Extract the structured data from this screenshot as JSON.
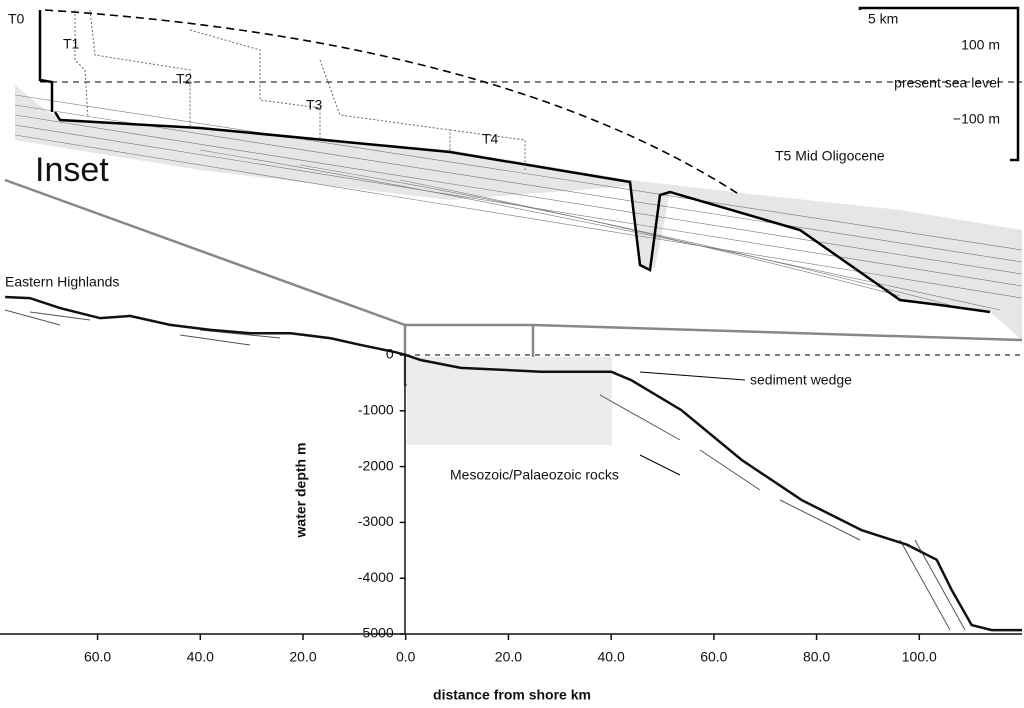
{
  "chart_data": {
    "type": "line",
    "x_label": "distance from shore km",
    "y_label": "water depth m",
    "x": [
      -78,
      -73.2,
      -67.3,
      -59.5,
      -53.7,
      -45.9,
      -38,
      -30.2,
      -22.4,
      -14.6,
      -8.8,
      -2,
      0,
      2.9,
      10.7,
      26.3,
      40,
      43.9,
      53.7,
      65.4,
      77.1,
      88.8,
      97.6,
      103.4,
      106.3,
      110.2,
      114.1,
      120
    ],
    "values": [
      1040,
      1020,
      840,
      660,
      700,
      540,
      450,
      390,
      390,
      300,
      180,
      50,
      0,
      -90,
      -230,
      -300,
      -300,
      -450,
      -990,
      -1880,
      -2600,
      -3140,
      -3400,
      -3670,
      -4210,
      -4840,
      -4930,
      -4930
    ],
    "color": "#111111",
    "xlim": [
      -79,
      120
    ],
    "ylim": [
      -5000,
      1100
    ],
    "xticks": [
      {
        "value": -60,
        "label": "60.0"
      },
      {
        "value": -40,
        "label": "40.0"
      },
      {
        "value": -20,
        "label": "20.0"
      },
      {
        "value": 0,
        "label": "0.0"
      },
      {
        "value": 20,
        "label": "20.0"
      },
      {
        "value": 40,
        "label": "40.0"
      },
      {
        "value": 60,
        "label": "60.0"
      },
      {
        "value": 80,
        "label": "80.0"
      },
      {
        "value": 100,
        "label": "100.0"
      }
    ],
    "yticks": [
      0,
      -1000,
      -2000,
      -3000,
      -4000,
      -5000
    ],
    "annotations": [
      "Eastern Highlands",
      "sediment wedge",
      "Mesozoic/Palaeozoic rocks"
    ],
    "inset": {
      "title": "Inset",
      "horizons": [
        "T0",
        "T1",
        "T2",
        "T3",
        "T4",
        "T5 Mid Oligocene"
      ],
      "scale": [
        "5 km",
        "100 m",
        "present sea level",
        "−100 m"
      ]
    }
  }
}
